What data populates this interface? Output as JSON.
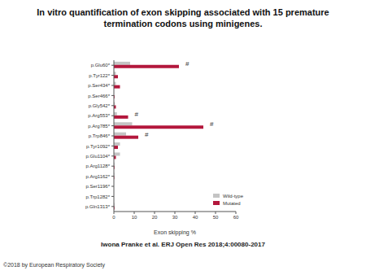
{
  "chart_data": {
    "type": "bar",
    "orientation": "horizontal",
    "title": "In vitro quantification of exon skipping associated with 15 premature termination codons using minigenes.",
    "caption": "Iwona Pranke et al. ERJ Open Res 2018;4:00080-2017",
    "copyright": "©2018 by European Respiratory Society",
    "x_label": "Exon skipping %",
    "categories": [
      "p.Glu60*",
      "p.Tyr122*",
      "p.Ser434*",
      "p.Ser466*",
      "p.Gly542*",
      "p.Arg553*",
      "p.Arg785*",
      "p.Trp846*",
      "p.Tyr1092*",
      "p.Glu1104*",
      "p.Arg1128*",
      "p.Arg1162*",
      "p.Ser1196*",
      "p.Trp1282*",
      "p.Gln1313*"
    ],
    "series": [
      {
        "name": "Wild-type",
        "color": "#c4c4c4",
        "values": [
          8,
          1,
          1,
          0,
          0.5,
          1.5,
          9,
          6,
          3,
          3,
          0.3,
          0.2,
          0,
          0,
          0.3
        ]
      },
      {
        "name": "Mutated",
        "color": "#b3173c",
        "values": [
          32,
          2,
          3,
          0.3,
          1,
          7,
          44,
          12,
          2,
          1,
          0.3,
          0.2,
          0,
          0,
          0.3
        ]
      }
    ],
    "annotations": [
      {
        "category": "p.Glu60*",
        "text": "#"
      },
      {
        "category": "p.Arg553*",
        "text": "#"
      },
      {
        "category": "p.Arg785*",
        "text": "#"
      },
      {
        "category": "p.Trp846*",
        "text": "#"
      }
    ],
    "xlim": [
      0,
      60
    ],
    "xticks": [
      0,
      10,
      20,
      30,
      40,
      50,
      60
    ],
    "legend": "lower right",
    "grid": false
  }
}
